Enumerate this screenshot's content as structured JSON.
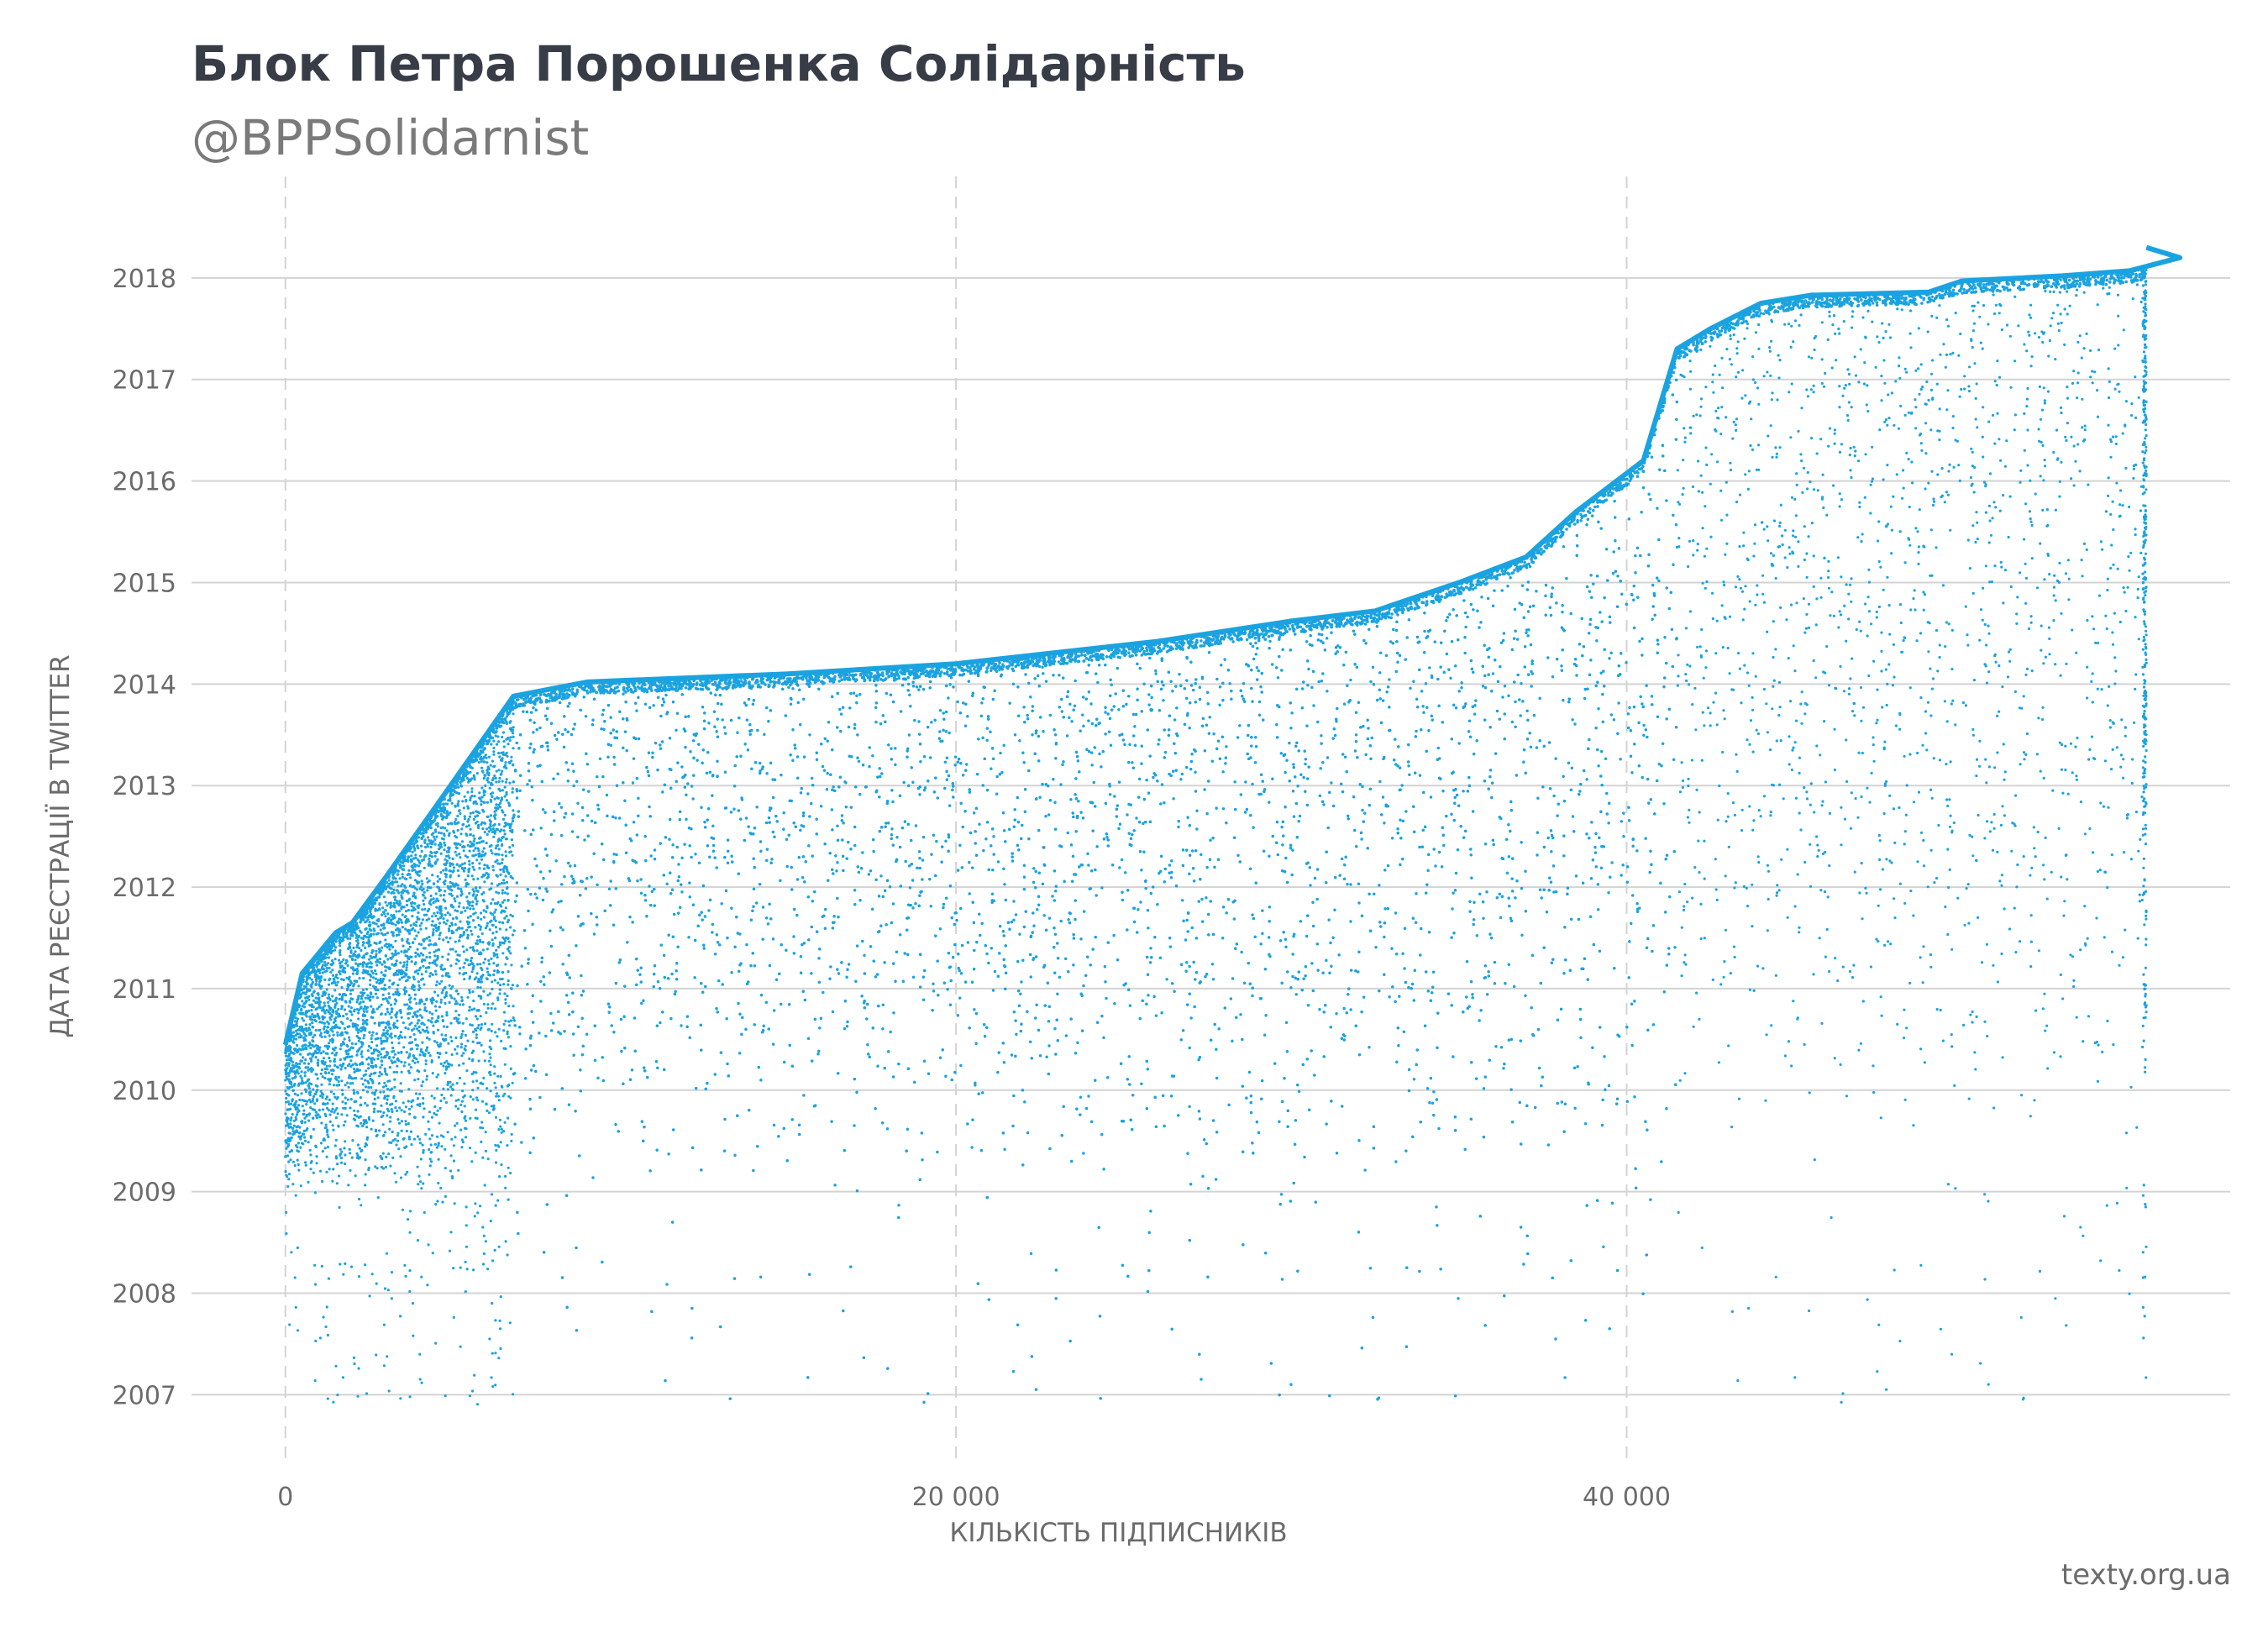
{
  "title": "Блок Петра Порошенка Солідарність",
  "subtitle": "@BPPSolidarnist",
  "source": "texty.org.ua",
  "colors": {
    "points": "#1aa3e0",
    "grid": "#d3d3d3",
    "text": "#6b6b6b",
    "title": "#373c47"
  },
  "chart_data": {
    "type": "scatter",
    "xlabel": "КІЛЬКІСТЬ ПІДПИСНИКІВ",
    "ylabel": "ДАТА РЕЄСТРАЦІЇ В TWITTER",
    "xlim": [
      -2800,
      58000
    ],
    "ylim": [
      2006.3,
      2019.0
    ],
    "x_ticks": [
      0,
      20000,
      40000
    ],
    "x_tick_labels": [
      "0",
      "20 000",
      "40 000"
    ],
    "y_ticks": [
      2007,
      2008,
      2009,
      2010,
      2011,
      2012,
      2013,
      2014,
      2015,
      2016,
      2017,
      2018
    ],
    "y_tick_labels": [
      "2007",
      "2008",
      "2009",
      "2010",
      "2011",
      "2012",
      "2013",
      "2014",
      "2015",
      "2016",
      "2017",
      "2018"
    ],
    "grid": {
      "horizontal": "solid",
      "vertical": "dashed"
    },
    "upper_envelope": [
      [
        0,
        2010.45
      ],
      [
        500,
        2011.15
      ],
      [
        1500,
        2011.55
      ],
      [
        2000,
        2011.65
      ],
      [
        3000,
        2012.1
      ],
      [
        4500,
        2012.8
      ],
      [
        6800,
        2013.88
      ],
      [
        9000,
        2014.02
      ],
      [
        15000,
        2014.1
      ],
      [
        20000,
        2014.2
      ],
      [
        26000,
        2014.42
      ],
      [
        30000,
        2014.62
      ],
      [
        32500,
        2014.72
      ],
      [
        35000,
        2015.0
      ],
      [
        37000,
        2015.25
      ],
      [
        38500,
        2015.7
      ],
      [
        40500,
        2016.2
      ],
      [
        41500,
        2017.3
      ],
      [
        42500,
        2017.5
      ],
      [
        44000,
        2017.75
      ],
      [
        45500,
        2017.83
      ],
      [
        49000,
        2017.86
      ],
      [
        50000,
        2017.97
      ],
      [
        53000,
        2018.02
      ],
      [
        55000,
        2018.07
      ],
      [
        56500,
        2018.2
      ],
      [
        55500,
        2018.3
      ]
    ],
    "point_regions": [
      {
        "x_range": [
          0,
          6800
        ],
        "y_min": 2009.0,
        "count": 4200
      },
      {
        "x_range": [
          6800,
          41500
        ],
        "y_min": 2009.0,
        "count": 14000
      },
      {
        "x_range": [
          41500,
          55400
        ],
        "y_min": 2009.3,
        "count": 1700
      },
      {
        "x_range": [
          55400,
          55500
        ],
        "y_min": 2010.0,
        "count": 350
      }
    ]
  }
}
